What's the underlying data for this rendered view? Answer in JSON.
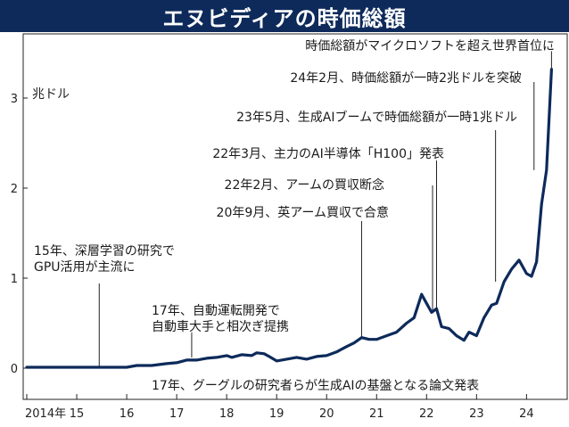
{
  "title": "エヌビディアの時価総額",
  "chart_data": {
    "type": "line",
    "title": "エヌビディアの時価総額",
    "ylabel": "兆ドル",
    "xlabel": "",
    "ylim": [
      0,
      3.5
    ],
    "xlim": [
      2014.0,
      2024.6
    ],
    "yticks": [
      0,
      1,
      2,
      3
    ],
    "xticks": [
      {
        "value": 2014,
        "label": "2014年"
      },
      {
        "value": 2015,
        "label": "15"
      },
      {
        "value": 2016,
        "label": "16"
      },
      {
        "value": 2017,
        "label": "17"
      },
      {
        "value": 2018,
        "label": "18"
      },
      {
        "value": 2019,
        "label": "19"
      },
      {
        "value": 2020,
        "label": "20"
      },
      {
        "value": 2021,
        "label": "21"
      },
      {
        "value": 2022,
        "label": "22"
      },
      {
        "value": 2023,
        "label": "23"
      },
      {
        "value": 2024,
        "label": "24"
      }
    ],
    "series": [
      {
        "color": "#0d2a5a",
        "x": [
          2014.0,
          2014.5,
          2015.0,
          2015.5,
          2016.0,
          2016.2,
          2016.5,
          2016.8,
          2017.0,
          2017.2,
          2017.4,
          2017.6,
          2017.8,
          2018.0,
          2018.1,
          2018.3,
          2018.5,
          2018.6,
          2018.75,
          2018.85,
          2019.0,
          2019.2,
          2019.4,
          2019.6,
          2019.8,
          2020.0,
          2020.2,
          2020.4,
          2020.55,
          2020.7,
          2020.85,
          2021.0,
          2021.2,
          2021.4,
          2021.6,
          2021.75,
          2021.9,
          2022.0,
          2022.1,
          2022.2,
          2022.3,
          2022.45,
          2022.6,
          2022.75,
          2022.85,
          2023.0,
          2023.15,
          2023.3,
          2023.4,
          2023.55,
          2023.7,
          2023.85,
          2024.0,
          2024.1,
          2024.2,
          2024.3,
          2024.4,
          2024.5
        ],
        "y": [
          0.01,
          0.01,
          0.01,
          0.01,
          0.01,
          0.03,
          0.03,
          0.05,
          0.06,
          0.09,
          0.09,
          0.11,
          0.12,
          0.14,
          0.12,
          0.15,
          0.14,
          0.17,
          0.16,
          0.13,
          0.08,
          0.1,
          0.12,
          0.1,
          0.13,
          0.14,
          0.18,
          0.24,
          0.28,
          0.34,
          0.32,
          0.32,
          0.36,
          0.4,
          0.5,
          0.56,
          0.82,
          0.72,
          0.62,
          0.66,
          0.46,
          0.44,
          0.36,
          0.31,
          0.4,
          0.36,
          0.56,
          0.7,
          0.72,
          0.96,
          1.1,
          1.2,
          1.05,
          1.02,
          1.18,
          1.82,
          2.2,
          3.32
        ]
      }
    ],
    "annotations": [
      {
        "lines": [
          "15年、深層学習の研究で",
          "GPU活用が主流に"
        ],
        "x": 2015.45,
        "y": 0.01
      },
      {
        "lines": [
          "17年、自動運転開発で",
          "自動車大手と相次ぎ提携"
        ],
        "x": 2017.3,
        "y": 0.1
      },
      {
        "lines": [
          "17年、グーグルの研究者らが生成AIの基盤となる論文発表"
        ],
        "x": null,
        "y": null
      },
      {
        "lines": [
          "20年9月、英アーム買収で合意"
        ],
        "x": 2020.7,
        "y": 0.34
      },
      {
        "lines": [
          "22年2月、アームの買収断念"
        ],
        "x": 2022.12,
        "y": 0.62
      },
      {
        "lines": [
          "22年3月、主力のAI半導体「H100」発表"
        ],
        "x": 2022.2,
        "y": 0.66
      },
      {
        "lines": [
          "23年5月、生成AIブームで時価総額が一時1兆ドル"
        ],
        "x": 2023.38,
        "y": 0.96
      },
      {
        "lines": [
          "24年2月、時価総額が一時2兆ドルを突破"
        ],
        "x": 2024.15,
        "y": 2.2
      },
      {
        "lines": [
          "時価総額がマイクロソフトを超え世界首位に"
        ],
        "x": 2024.5,
        "y": 3.32
      }
    ]
  }
}
